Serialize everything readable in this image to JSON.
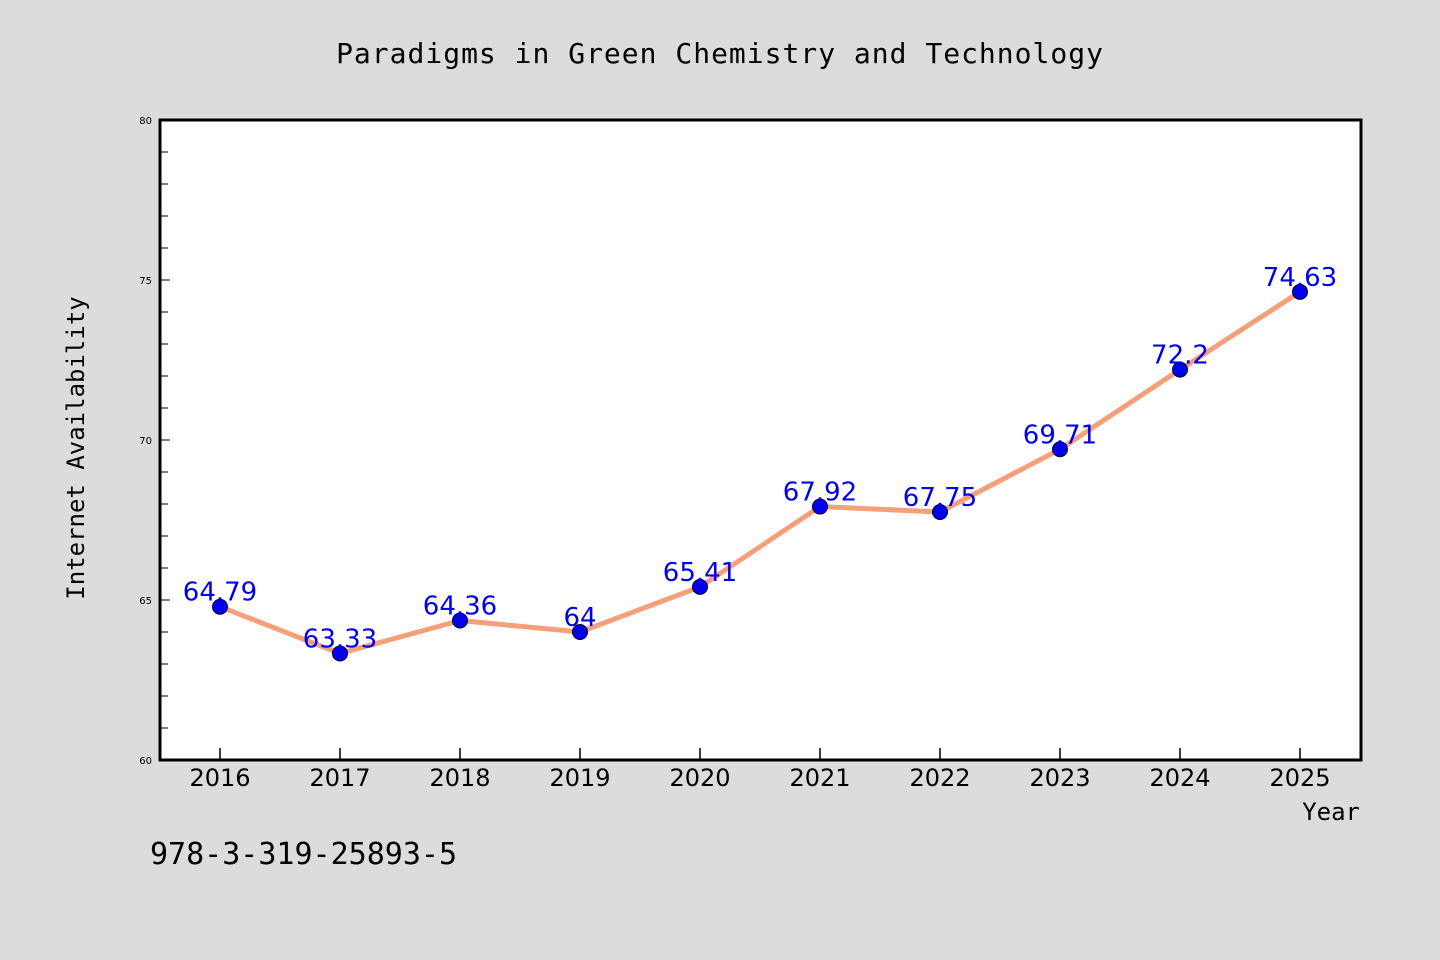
{
  "chart_data": {
    "type": "line",
    "title": "Paradigms in Green Chemistry and Technology",
    "xlabel": "Year",
    "ylabel": "Internet Availability",
    "categories": [
      "2016",
      "2017",
      "2018",
      "2019",
      "2020",
      "2021",
      "2022",
      "2023",
      "2024",
      "2025"
    ],
    "series": [
      {
        "values": [
          64.79,
          63.33,
          64.36,
          64,
          65.41,
          67.92,
          67.75,
          69.71,
          72.2,
          74.63
        ],
        "data_labels": [
          "64.79",
          "63.33",
          "64.36",
          "64",
          "65.41",
          "67.92",
          "67.75",
          "69.71",
          "72.2",
          "74.63"
        ],
        "line_color": "#f5a07a",
        "marker_color": "#0000ee"
      }
    ],
    "ylim": [
      60,
      80
    ],
    "yticks": [
      "60",
      "65",
      "70",
      "75",
      "80"
    ],
    "grid": false,
    "legend": "none"
  },
  "footer": {
    "isbn": "978-3-319-25893-5"
  },
  "colors": {
    "background": "#dcdcdc",
    "plot_background": "#ffffff",
    "label_color": "#0000ee"
  }
}
